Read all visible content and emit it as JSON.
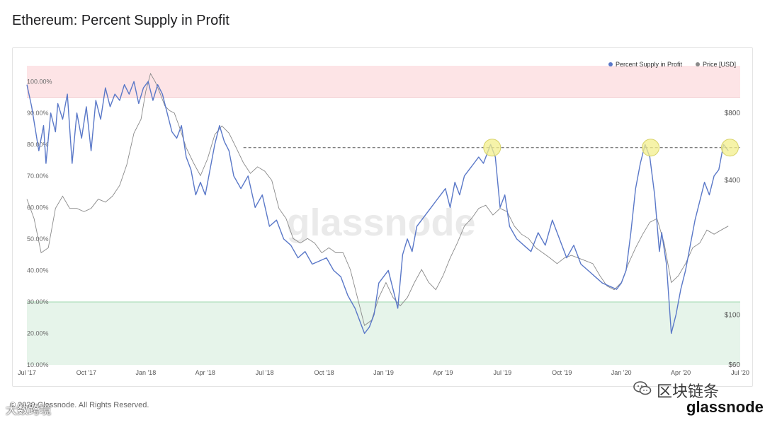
{
  "page": {
    "title": "Ethereum: Percent Supply in Profit",
    "footer": "© 2020 Glassnode. All Rights Reserved.",
    "watermark_center": "glassnode",
    "brand_logo": "glassnode",
    "wechat_account": "区块链条",
    "overlay_text": "大数跨境",
    "icons": [
      "wechat-icon"
    ]
  },
  "chart_data": {
    "type": "line",
    "title": "Ethereum: Percent Supply in Profit",
    "x_ticks": [
      "Jul '17",
      "Oct '17",
      "Jan '18",
      "Apr '18",
      "Jul '18",
      "Oct '18",
      "Jan '19",
      "Apr '19",
      "Jul '19",
      "Oct '19",
      "Jan '20",
      "Apr '20",
      "Jul '20"
    ],
    "y_left_ticks": [
      "10.00%",
      "20.00%",
      "30.00%",
      "40.00%",
      "50.00%",
      "60.00%",
      "70.00%",
      "80.00%",
      "90.00%",
      "100.00%"
    ],
    "y_left_range": [
      10,
      105
    ],
    "y_right_ticks": [
      "$60",
      "$100",
      "$400",
      "$800"
    ],
    "y_right_scale": "log",
    "y_right_range": [
      60,
      1300
    ],
    "legend_position": "top-right",
    "bands": [
      {
        "from": 95,
        "to": 105,
        "color": "#fde4e6"
      },
      {
        "from": 10,
        "to": 30,
        "color": "#e6f4ea"
      }
    ],
    "reference_line": {
      "value": 79,
      "style": "dashed",
      "from_x": "Jul '18"
    },
    "highlights": [
      {
        "x": "Jun '19",
        "y": 79
      },
      {
        "x": "Feb '20",
        "y": 79
      },
      {
        "x": "Jun '20",
        "y": 79
      }
    ],
    "colors": {
      "profit": "#5a78c8",
      "price": "#8a8a8a",
      "highlight": "#f3ef8c",
      "green_line": "#9fd7ae"
    },
    "series": [
      {
        "name": "Percent Supply in Profit",
        "axis": "left",
        "x": [
          2017.5,
          2017.52,
          2017.55,
          2017.57,
          2017.58,
          2017.6,
          2017.62,
          2017.63,
          2017.65,
          2017.67,
          2017.69,
          2017.71,
          2017.73,
          2017.75,
          2017.77,
          2017.79,
          2017.81,
          2017.83,
          2017.85,
          2017.87,
          2017.89,
          2017.91,
          2017.93,
          2017.95,
          2017.97,
          2017.99,
          2018.01,
          2018.03,
          2018.05,
          2018.07,
          2018.09,
          2018.11,
          2018.13,
          2018.15,
          2018.17,
          2018.19,
          2018.21,
          2018.23,
          2018.25,
          2018.27,
          2018.29,
          2018.31,
          2018.33,
          2018.35,
          2018.37,
          2018.4,
          2018.43,
          2018.46,
          2018.49,
          2018.52,
          2018.55,
          2018.58,
          2018.61,
          2018.64,
          2018.67,
          2018.7,
          2018.73,
          2018.76,
          2018.79,
          2018.82,
          2018.85,
          2018.88,
          2018.9,
          2018.92,
          2018.94,
          2018.96,
          2018.98,
          2019.0,
          2019.02,
          2019.04,
          2019.06,
          2019.08,
          2019.1,
          2019.12,
          2019.14,
          2019.16,
          2019.18,
          2019.2,
          2019.22,
          2019.24,
          2019.26,
          2019.28,
          2019.3,
          2019.32,
          2019.34,
          2019.36,
          2019.38,
          2019.4,
          2019.42,
          2019.44,
          2019.45,
          2019.47,
          2019.49,
          2019.51,
          2019.53,
          2019.56,
          2019.59,
          2019.62,
          2019.65,
          2019.68,
          2019.71,
          2019.74,
          2019.77,
          2019.8,
          2019.83,
          2019.86,
          2019.89,
          2019.92,
          2019.95,
          2019.98,
          2020.0,
          2020.02,
          2020.04,
          2020.06,
          2020.08,
          2020.1,
          2020.12,
          2020.14,
          2020.16,
          2020.17,
          2020.19,
          2020.21,
          2020.23,
          2020.25,
          2020.27,
          2020.29,
          2020.31,
          2020.33,
          2020.35,
          2020.37,
          2020.39,
          2020.41,
          2020.43,
          2020.45
        ],
        "values": [
          99,
          92,
          78,
          86,
          74,
          90,
          84,
          93,
          88,
          96,
          74,
          90,
          82,
          92,
          78,
          94,
          88,
          98,
          92,
          96,
          94,
          99,
          96,
          100,
          93,
          98,
          100,
          94,
          99,
          96,
          90,
          84,
          82,
          86,
          76,
          72,
          64,
          68,
          64,
          72,
          80,
          86,
          81,
          78,
          70,
          66,
          70,
          60,
          64,
          54,
          56,
          50,
          48,
          44,
          46,
          42,
          43,
          44,
          40,
          38,
          32,
          28,
          24,
          20,
          22,
          26,
          36,
          38,
          40,
          34,
          28,
          45,
          50,
          46,
          54,
          56,
          58,
          60,
          62,
          64,
          66,
          60,
          68,
          64,
          70,
          72,
          74,
          76,
          74,
          78,
          80,
          76,
          60,
          64,
          54,
          50,
          48,
          46,
          52,
          48,
          56,
          50,
          44,
          48,
          42,
          40,
          38,
          36,
          35,
          34,
          36,
          40,
          52,
          66,
          74,
          80,
          76,
          64,
          46,
          52,
          42,
          20,
          26,
          34,
          40,
          48,
          56,
          62,
          68,
          64,
          70,
          72,
          80,
          78
        ]
      },
      {
        "name": "Price [USD]",
        "axis": "right",
        "x": [
          2017.5,
          2017.53,
          2017.56,
          2017.59,
          2017.62,
          2017.65,
          2017.68,
          2017.71,
          2017.74,
          2017.77,
          2017.8,
          2017.83,
          2017.86,
          2017.89,
          2017.92,
          2017.95,
          2017.98,
          2018.0,
          2018.02,
          2018.04,
          2018.06,
          2018.08,
          2018.1,
          2018.12,
          2018.14,
          2018.17,
          2018.2,
          2018.23,
          2018.26,
          2018.29,
          2018.32,
          2018.35,
          2018.38,
          2018.41,
          2018.44,
          2018.47,
          2018.5,
          2018.53,
          2018.56,
          2018.59,
          2018.62,
          2018.65,
          2018.68,
          2018.71,
          2018.74,
          2018.77,
          2018.8,
          2018.83,
          2018.86,
          2018.89,
          2018.92,
          2018.95,
          2018.98,
          2019.01,
          2019.04,
          2019.07,
          2019.1,
          2019.13,
          2019.16,
          2019.19,
          2019.22,
          2019.25,
          2019.28,
          2019.31,
          2019.34,
          2019.37,
          2019.4,
          2019.43,
          2019.46,
          2019.49,
          2019.52,
          2019.55,
          2019.58,
          2019.61,
          2019.64,
          2019.67,
          2019.7,
          2019.73,
          2019.76,
          2019.79,
          2019.82,
          2019.85,
          2019.88,
          2019.91,
          2019.94,
          2019.97,
          2020.0,
          2020.03,
          2020.06,
          2020.09,
          2020.12,
          2020.15,
          2020.18,
          2020.21,
          2020.24,
          2020.27,
          2020.3,
          2020.33,
          2020.36,
          2020.39,
          2020.42,
          2020.45
        ],
        "values": [
          330,
          270,
          190,
          200,
          300,
          340,
          300,
          300,
          290,
          300,
          330,
          320,
          340,
          380,
          470,
          650,
          750,
          1000,
          1200,
          1100,
          980,
          860,
          820,
          800,
          700,
          560,
          480,
          420,
          500,
          640,
          700,
          650,
          560,
          480,
          430,
          460,
          440,
          400,
          300,
          270,
          220,
          210,
          220,
          210,
          190,
          200,
          190,
          190,
          160,
          120,
          90,
          95,
          120,
          140,
          120,
          110,
          120,
          140,
          160,
          140,
          130,
          150,
          180,
          210,
          250,
          270,
          300,
          310,
          280,
          300,
          290,
          250,
          230,
          220,
          200,
          190,
          180,
          170,
          180,
          185,
          180,
          175,
          170,
          150,
          135,
          130,
          140,
          170,
          200,
          230,
          260,
          270,
          210,
          140,
          150,
          170,
          200,
          210,
          240,
          230,
          240,
          250
        ]
      }
    ]
  }
}
